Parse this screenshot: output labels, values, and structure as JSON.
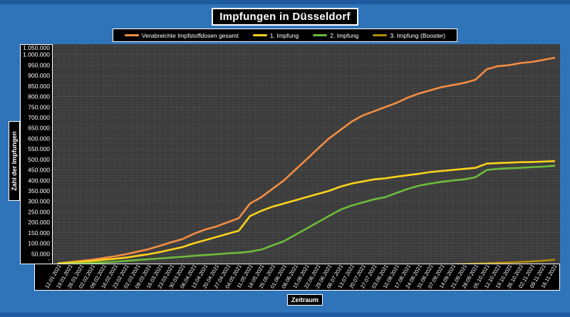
{
  "chart_data": {
    "type": "line",
    "title": "Impfungen in Düsseldorf",
    "xlabel": "Zeitraum",
    "ylabel": "Zahl der Impfungen",
    "ylim": [
      0,
      1050000
    ],
    "grid": true,
    "legend_position": "top",
    "yticks": [
      {
        "value": 0,
        "label": "-"
      },
      {
        "value": 50000,
        "label": "50.000"
      },
      {
        "value": 100000,
        "label": "100.000"
      },
      {
        "value": 150000,
        "label": "150.000"
      },
      {
        "value": 200000,
        "label": "200.000"
      },
      {
        "value": 250000,
        "label": "250.000"
      },
      {
        "value": 300000,
        "label": "300.000"
      },
      {
        "value": 350000,
        "label": "350.000"
      },
      {
        "value": 400000,
        "label": "400.000"
      },
      {
        "value": 450000,
        "label": "450.000"
      },
      {
        "value": 500000,
        "label": "500.000"
      },
      {
        "value": 550000,
        "label": "550.000"
      },
      {
        "value": 600000,
        "label": "600.000"
      },
      {
        "value": 650000,
        "label": "650.000"
      },
      {
        "value": 700000,
        "label": "700.000"
      },
      {
        "value": 750000,
        "label": "750.000"
      },
      {
        "value": 800000,
        "label": "800.000"
      },
      {
        "value": 850000,
        "label": "850.000"
      },
      {
        "value": 900000,
        "label": "900.000"
      },
      {
        "value": 950000,
        "label": "950.000"
      },
      {
        "value": 1000000,
        "label": "1.000.000"
      },
      {
        "value": 1050000,
        "label": "1.050.000"
      }
    ],
    "categories": [
      "12.01.2021",
      "19.01.2021",
      "26.01.2021",
      "02.02.2021",
      "09.02.2021",
      "16.02.2021",
      "23.02.2021",
      "02.03.2021",
      "09.03.2021",
      "16.03.2021",
      "23.03.2021",
      "30.03.2021",
      "06.04.2021",
      "13.04.2021",
      "20.04.2021",
      "27.04.2021",
      "04.05.2021",
      "11.05.2021",
      "18.05.2021",
      "25.05.2021",
      "01.06.2021",
      "08.06.2021",
      "15.06.2021",
      "22.06.2021",
      "29.06.2021",
      "06.07.2021",
      "13.07.2021",
      "20.07.2021",
      "27.07.2021",
      "03.08.2021",
      "10.08.2021",
      "17.08.2021",
      "24.08.2021",
      "31.08.2021",
      "07.09.2021",
      "14.09.2021",
      "21.09.2021",
      "28.09.2021",
      "05.10.2021",
      "12.10.2021",
      "19.10.2021",
      "26.10.2021",
      "02.11.2021",
      "09.11.2021",
      "16.11.2021"
    ],
    "series": [
      {
        "name": "Verabreichte Impfstoffdosen gesamt",
        "color": "#f58d42",
        "values": [
          5000,
          10000,
          16000,
          22000,
          30000,
          38000,
          48000,
          60000,
          72000,
          88000,
          105000,
          120000,
          145000,
          165000,
          180000,
          200000,
          220000,
          290000,
          320000,
          360000,
          400000,
          450000,
          500000,
          550000,
          600000,
          640000,
          680000,
          710000,
          730000,
          750000,
          770000,
          795000,
          815000,
          830000,
          845000,
          855000,
          865000,
          880000,
          930000,
          945000,
          950000,
          960000,
          965000,
          975000,
          985000
        ]
      },
      {
        "name": "1. Impfung",
        "color": "#ffd21a",
        "values": [
          4000,
          8000,
          12000,
          16000,
          21000,
          26000,
          32000,
          40000,
          48000,
          58000,
          70000,
          82000,
          100000,
          115000,
          130000,
          145000,
          160000,
          230000,
          255000,
          275000,
          290000,
          305000,
          320000,
          335000,
          350000,
          370000,
          385000,
          395000,
          405000,
          410000,
          418000,
          425000,
          432000,
          440000,
          445000,
          450000,
          455000,
          460000,
          480000,
          483000,
          485000,
          487000,
          488000,
          490000,
          492000
        ]
      },
      {
        "name": "2. Impfung",
        "color": "#6cbb3c",
        "values": [
          0,
          2000,
          4000,
          6000,
          9000,
          12000,
          16000,
          20000,
          24000,
          28000,
          32000,
          36000,
          40000,
          44000,
          48000,
          52000,
          55000,
          60000,
          70000,
          90000,
          110000,
          140000,
          170000,
          200000,
          230000,
          260000,
          280000,
          295000,
          310000,
          320000,
          340000,
          360000,
          375000,
          385000,
          393000,
          400000,
          405000,
          415000,
          450000,
          455000,
          458000,
          460000,
          463000,
          466000,
          470000
        ]
      },
      {
        "name": "3. Impfung (Booster)",
        "color": "#b08c0a",
        "values": [
          null,
          null,
          null,
          null,
          null,
          null,
          null,
          null,
          null,
          null,
          null,
          null,
          null,
          null,
          null,
          null,
          null,
          null,
          null,
          null,
          null,
          null,
          null,
          null,
          null,
          null,
          null,
          null,
          null,
          null,
          null,
          null,
          null,
          null,
          null,
          0,
          1000,
          3000,
          5000,
          7000,
          9000,
          11000,
          14000,
          17000,
          22000
        ]
      }
    ]
  }
}
